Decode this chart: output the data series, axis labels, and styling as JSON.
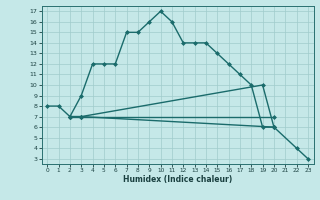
{
  "xlabel": "Humidex (Indice chaleur)",
  "background_color": "#c5e8e8",
  "grid_color": "#a0cccc",
  "line_color": "#1a6b6b",
  "xlim": [
    -0.5,
    23.5
  ],
  "ylim": [
    2.5,
    17.5
  ],
  "xticks": [
    0,
    1,
    2,
    3,
    4,
    5,
    6,
    7,
    8,
    9,
    10,
    11,
    12,
    13,
    14,
    15,
    16,
    17,
    18,
    19,
    20,
    21,
    22,
    23
  ],
  "yticks": [
    3,
    4,
    5,
    6,
    7,
    8,
    9,
    10,
    11,
    12,
    13,
    14,
    15,
    16,
    17
  ],
  "line1_x": [
    0,
    1,
    2,
    3,
    4,
    5,
    6,
    7,
    8,
    9,
    10,
    11,
    12,
    13,
    14,
    15,
    16,
    17,
    18,
    19,
    20
  ],
  "line1_y": [
    8,
    8,
    7,
    9,
    12,
    12,
    12,
    15,
    15,
    16,
    17,
    16,
    14,
    14,
    14,
    13,
    12,
    11,
    10,
    6,
    6
  ],
  "line2_x": [
    2,
    3,
    19,
    20
  ],
  "line2_y": [
    7,
    7,
    10,
    6
  ],
  "line3_x": [
    2,
    3,
    20
  ],
  "line3_y": [
    7,
    7,
    7
  ],
  "line4_x": [
    2,
    3,
    20,
    22,
    23
  ],
  "line4_y": [
    7,
    7,
    6,
    4,
    3
  ]
}
